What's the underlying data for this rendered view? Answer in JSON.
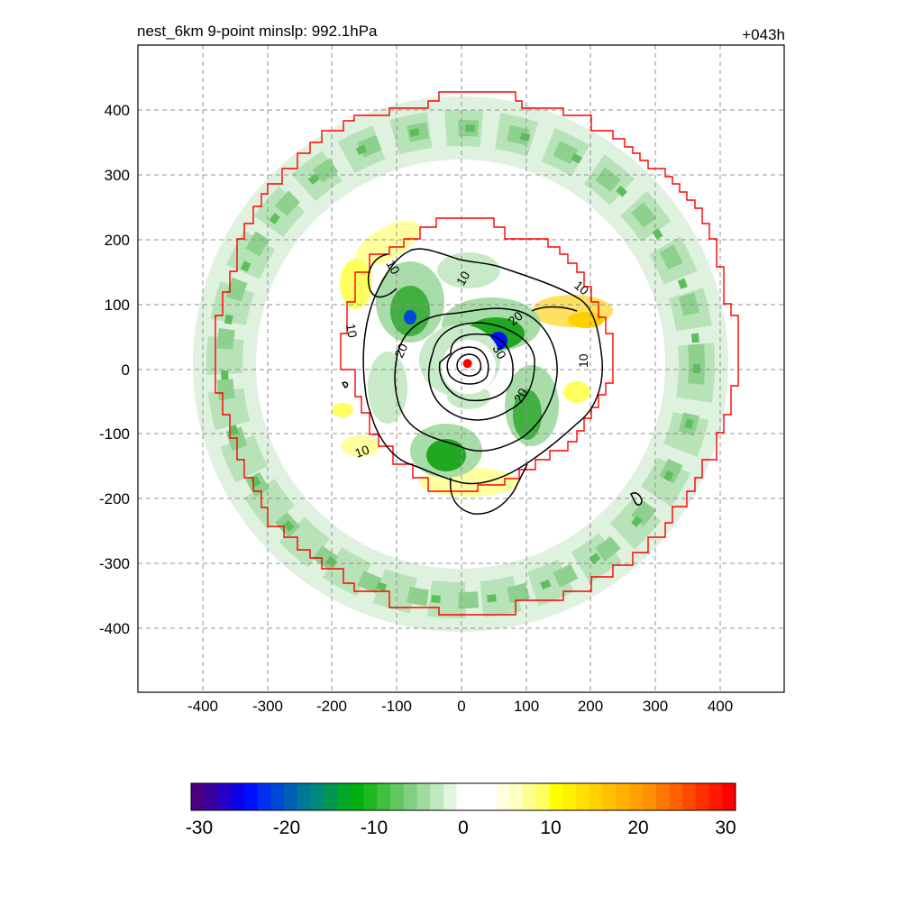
{
  "chart_data": {
    "type": "heatmap",
    "title_left": "nest_6km  9-point minslp: 992.1hPa",
    "title_right": "+043h",
    "xlim": [
      -500,
      500
    ],
    "ylim": [
      -500,
      500
    ],
    "x_ticks": [
      -400,
      -300,
      -200,
      -100,
      0,
      100,
      200,
      300,
      400
    ],
    "y_ticks": [
      400,
      300,
      200,
      100,
      0,
      -100,
      -200,
      -300,
      -400
    ],
    "grid": true,
    "contour_levels": [
      10,
      20,
      30
    ],
    "contour_labels": [
      "10",
      "10",
      "10",
      "10",
      "10",
      "10",
      "20",
      "20",
      "20",
      "30"
    ],
    "center_marker": {
      "x": 10,
      "y": 8,
      "color": "#ff0000"
    },
    "colorbar": {
      "min": -30,
      "max": 30,
      "tick_values": [
        -30,
        -20,
        -10,
        0,
        10,
        20,
        30
      ],
      "colors": [
        "#4b0082",
        "#3a00a0",
        "#2400c8",
        "#0c00e8",
        "#0010ff",
        "#0030f0",
        "#0048d8",
        "#0060b8",
        "#007898",
        "#008878",
        "#009850",
        "#00a828",
        "#00b010",
        "#20b820",
        "#40c040",
        "#60c860",
        "#80d080",
        "#a0dca0",
        "#c0e8c0",
        "#e0f4e0",
        "#ffffff",
        "#ffffff",
        "#ffffff",
        "#ffffe0",
        "#ffffc0",
        "#ffff90",
        "#ffff60",
        "#ffff00",
        "#fff000",
        "#ffe000",
        "#ffd000",
        "#ffc000",
        "#ffb000",
        "#ffa000",
        "#ff9000",
        "#ff7800",
        "#ff6000",
        "#ff4800",
        "#ff3000",
        "#ff1800",
        "#ff0000"
      ]
    }
  }
}
